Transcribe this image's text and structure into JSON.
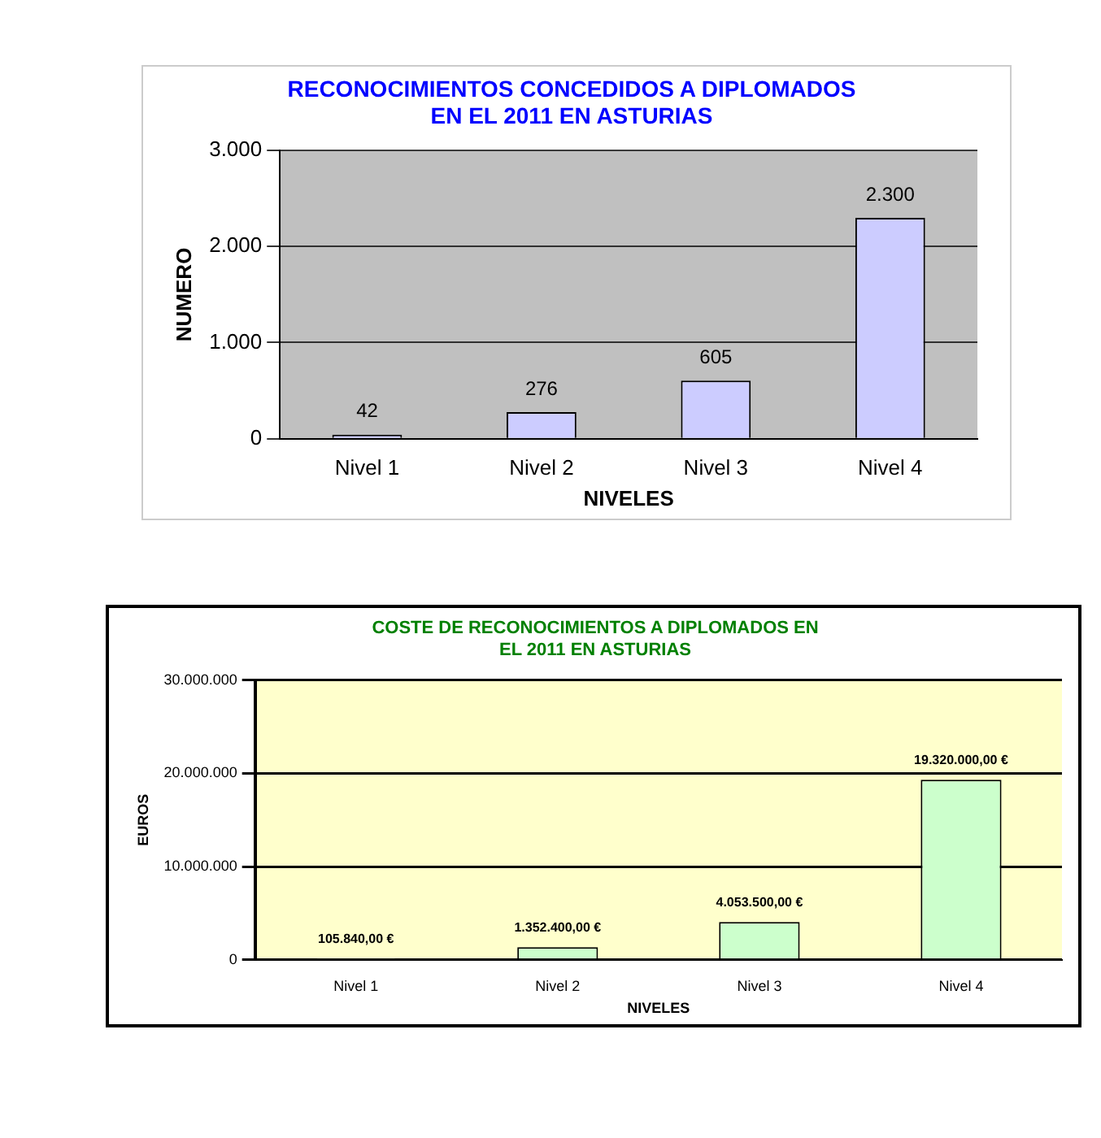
{
  "chart_data": [
    {
      "type": "bar",
      "title": "RECONOCIMIENTOS CONCEDIDOS A DIPLOMADOS EN EL 2011 EN ASTURIAS",
      "xlabel": "NIVELES",
      "ylabel": "NUMERO",
      "categories": [
        "Nivel 1",
        "Nivel 2",
        "Nivel 3",
        "Nivel 4"
      ],
      "series": [
        {
          "color": "#ccccff",
          "values": [
            42,
            276,
            605,
            2300
          ],
          "value_labels": [
            "42",
            "276",
            "605",
            "2.300"
          ]
        }
      ],
      "ylim": [
        0,
        3000
      ],
      "yticks": [
        {
          "value": 0,
          "label": "0"
        },
        {
          "value": 1000,
          "label": "1.000"
        },
        {
          "value": 2000,
          "label": "2.000"
        },
        {
          "value": 3000,
          "label": "3.000"
        }
      ],
      "grid": "y"
    },
    {
      "type": "bar",
      "title": "COSTE DE RECONOCIMIENTOS A DIPLOMADOS EN EL 2011 EN ASTURIAS",
      "xlabel": "NIVELES",
      "ylabel": "EUROS",
      "categories": [
        "Nivel 1",
        "Nivel 2",
        "Nivel 3",
        "Nivel 4"
      ],
      "series": [
        {
          "color": "#ccffcc",
          "values": [
            105840,
            1352400,
            4053500,
            19320000
          ],
          "value_labels": [
            "105.840,00 €",
            "1.352.400,00 €",
            "4.053.500,00 €",
            "19.320.000,00 €"
          ]
        }
      ],
      "ylim": [
        0,
        30000000
      ],
      "yticks": [
        {
          "value": 0,
          "label": "0"
        },
        {
          "value": 10000000,
          "label": "10.000.000"
        },
        {
          "value": 20000000,
          "label": "20.000.000"
        },
        {
          "value": 30000000,
          "label": "30.000.000"
        }
      ],
      "grid": "y"
    }
  ]
}
